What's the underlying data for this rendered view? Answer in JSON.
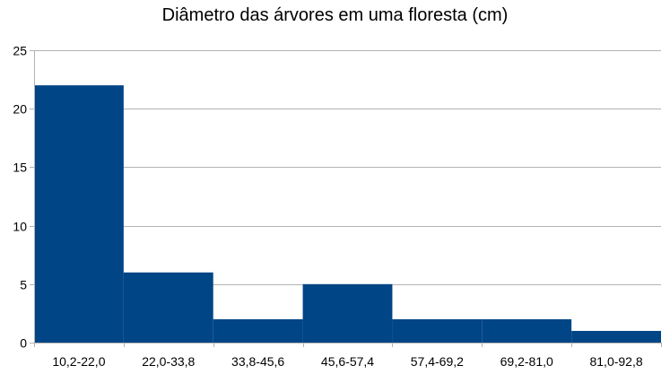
{
  "chart_data": {
    "type": "bar",
    "title": "Diâmetro das árvores em uma floresta (cm)",
    "categories": [
      "10,2-22,0",
      "22,0-33,8",
      "33,8-45,6",
      "45,6-57,4",
      "57,4-69,2",
      "69,2-81,0",
      "81,0-92,8"
    ],
    "values": [
      22,
      6,
      2,
      5,
      2,
      2,
      1
    ],
    "ylim": [
      0,
      25
    ],
    "yticks": [
      0,
      5,
      10,
      15,
      20,
      25
    ],
    "xlabel": "",
    "ylabel": "",
    "grid": true,
    "legend": "none",
    "bar_color": "#004586",
    "grid_color": "#b3b3b3"
  }
}
